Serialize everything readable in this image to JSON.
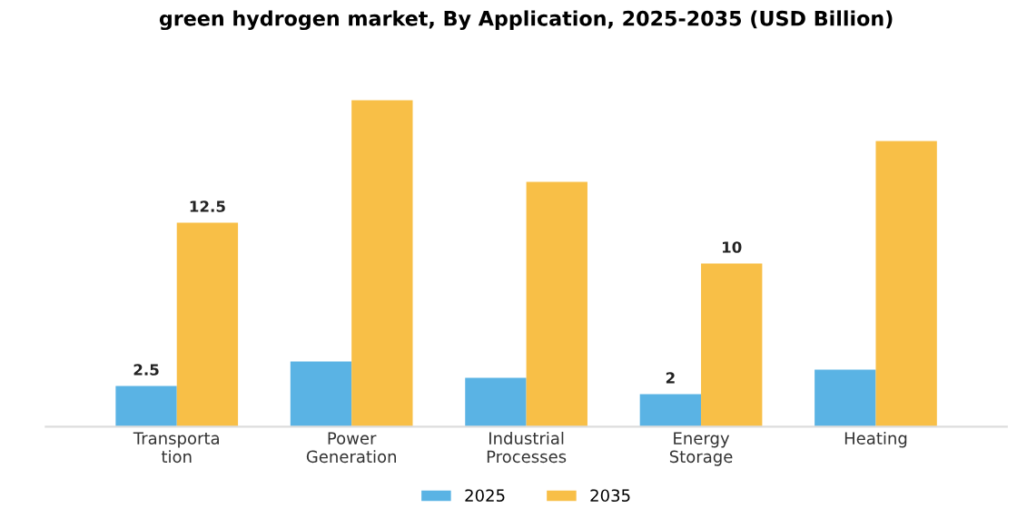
{
  "chart_data": {
    "type": "bar",
    "title": "green hydrogen market, By Application, 2025-2035 (USD Billion)",
    "categories": [
      "Transporta\ntion",
      "Power\nGeneration",
      "Industrial\nProcesses",
      "Energy\nStorage",
      "Heating"
    ],
    "series": [
      {
        "name": "2025",
        "color": "#5ab3e4",
        "values": [
          2.5,
          4,
          3,
          2,
          3.5
        ],
        "value_labels": [
          "2.5",
          null,
          null,
          "2",
          null
        ]
      },
      {
        "name": "2035",
        "color": "#f8bf47",
        "values": [
          12.5,
          20,
          15,
          10,
          17.5
        ],
        "value_labels": [
          "12.5",
          null,
          null,
          "10",
          null
        ]
      }
    ],
    "legend": "bottom",
    "grid": false
  }
}
